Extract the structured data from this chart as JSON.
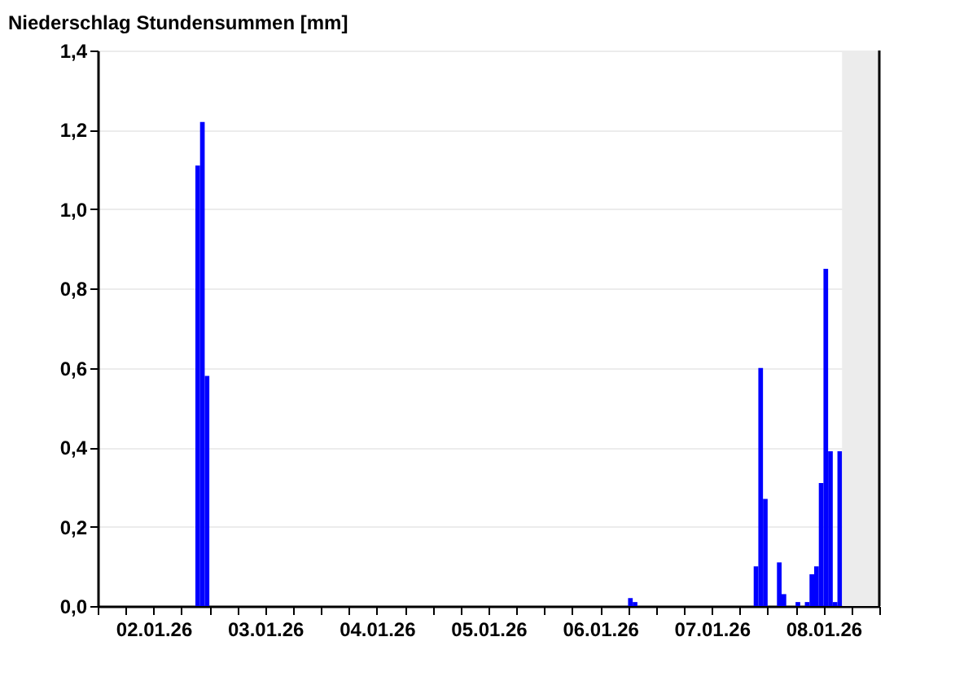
{
  "chart_data": {
    "type": "bar",
    "title": "Niederschlag Stundensummen [mm]",
    "x": [
      "--01-02T21:00",
      "--01-02T22:00",
      "--01-02T23:00",
      "--01-06T18:00",
      "--01-06T19:00",
      "--01-07T21:00",
      "--01-07T22:00",
      "--01-07T23:00",
      "--01-08T02:00",
      "--01-08T03:00",
      "--01-08T06:00",
      "--01-08T08:00",
      "--01-08T09:00",
      "--01-08T10:00",
      "--01-08T11:00",
      "--01-08T12:00",
      "--01-08T13:00",
      "--01-08T14:00",
      "--01-08T15:00"
    ],
    "values": [
      1.11,
      1.22,
      0.58,
      0.02,
      0.01,
      0.1,
      0.6,
      0.27,
      0.11,
      0.03,
      0.01,
      0.01,
      0.08,
      0.1,
      0.31,
      0.85,
      0.39,
      0.01,
      0.39
    ],
    "color": "#0000ff",
    "xlim": [
      "--01-02T00:00",
      "--01-09T00:00"
    ],
    "xticks": [
      {
        "value": "--01-02T00:00",
        "label": null
      },
      {
        "value": "--01-02T06:00",
        "label": null
      },
      {
        "value": "--01-02T12:00",
        "label": "02.01.26"
      },
      {
        "value": "--01-02T18:00",
        "label": null
      },
      {
        "value": "--01-03T00:00",
        "label": null
      },
      {
        "value": "--01-03T06:00",
        "label": null
      },
      {
        "value": "--01-03T12:00",
        "label": "03.01.26"
      },
      {
        "value": "--01-03T18:00",
        "label": null
      },
      {
        "value": "--01-04T00:00",
        "label": null
      },
      {
        "value": "--01-04T06:00",
        "label": null
      },
      {
        "value": "--01-04T12:00",
        "label": "04.01.26"
      },
      {
        "value": "--01-04T18:00",
        "label": null
      },
      {
        "value": "--01-05T00:00",
        "label": null
      },
      {
        "value": "--01-05T06:00",
        "label": null
      },
      {
        "value": "--01-05T12:00",
        "label": "05.01.26"
      },
      {
        "value": "--01-05T18:00",
        "label": null
      },
      {
        "value": "--01-06T00:00",
        "label": null
      },
      {
        "value": "--01-06T06:00",
        "label": null
      },
      {
        "value": "--01-06T12:00",
        "label": "06.01.26"
      },
      {
        "value": "--01-06T18:00",
        "label": null
      },
      {
        "value": "--01-07T00:00",
        "label": null
      },
      {
        "value": "--01-07T06:00",
        "label": null
      },
      {
        "value": "--01-07T12:00",
        "label": "07.01.26"
      },
      {
        "value": "--01-07T18:00",
        "label": null
      },
      {
        "value": "--01-08T00:00",
        "label": null
      },
      {
        "value": "--01-08T06:00",
        "label": null
      },
      {
        "value": "--01-08T12:00",
        "label": "08.01.26"
      },
      {
        "value": "--01-08T18:00",
        "label": null
      },
      {
        "value": "--01-09T00:00",
        "label": null
      }
    ],
    "ylim": [
      0,
      1.4
    ],
    "yticks": [
      {
        "value": 0,
        "label": "0,0"
      },
      {
        "value": 0.2,
        "label": "0,2"
      },
      {
        "value": 0.4,
        "label": "0,4"
      },
      {
        "value": 0.6,
        "label": "0,6"
      },
      {
        "value": 0.8,
        "label": "0,8"
      },
      {
        "value": 1.0,
        "label": "1,0"
      },
      {
        "value": 1.2,
        "label": "1,2"
      },
      {
        "value": 1.4,
        "label": "1,4"
      }
    ],
    "grid": "y",
    "bands": [
      {
        "axis": "x",
        "from": "--01-08T16:00",
        "to": "--01-09T00:00",
        "color": "#ececec"
      }
    ]
  }
}
